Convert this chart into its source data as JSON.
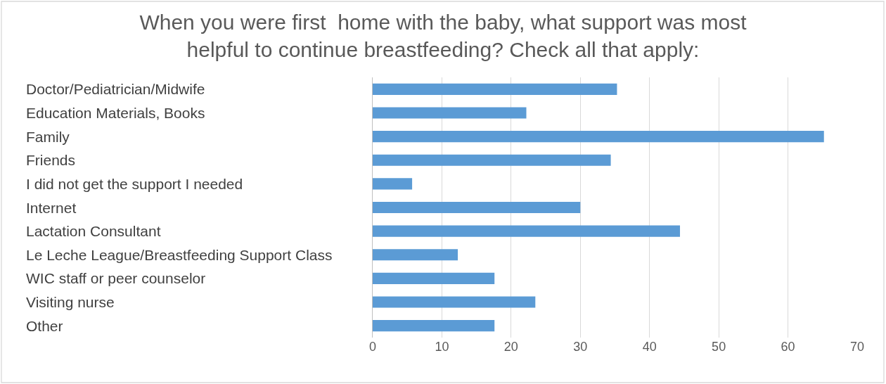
{
  "chart_data": {
    "type": "bar",
    "orientation": "horizontal",
    "title": "When you were first  home with the baby, what support was most\nhelpful to continue breastfeeding? Check all that apply:",
    "categories": [
      "Doctor/Pediatrician/Midwife",
      "Education Materials, Books",
      "Family",
      "Friends",
      "I did not get the support I needed",
      "Internet",
      "Lactation Consultant",
      "Le Leche League/Breastfeeding Support Class",
      "WIC staff or peer counselor",
      "Visiting nurse",
      "Other"
    ],
    "values": [
      35.3,
      22.2,
      65.2,
      34.4,
      5.7,
      30.0,
      44.4,
      12.3,
      17.6,
      23.5,
      17.6
    ],
    "color": "#5b9bd5",
    "xlim": [
      0,
      70
    ],
    "xticks": [
      0,
      10,
      20,
      30,
      40,
      50,
      60,
      70
    ],
    "grid": "x"
  }
}
